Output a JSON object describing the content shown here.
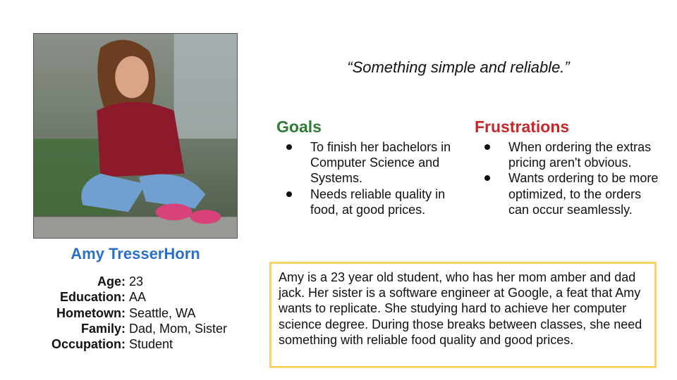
{
  "persona": {
    "name": "Amy TresserHorn",
    "details": [
      {
        "label": "Age:",
        "value": "23"
      },
      {
        "label": "Education:",
        "value": "AA"
      },
      {
        "label": "Hometown:",
        "value": "Seattle, WA"
      },
      {
        "label": "Family:",
        "value": "Dad, Mom, Sister"
      },
      {
        "label": "Occupation:",
        "value": "Student"
      }
    ]
  },
  "quote": "“Something simple and reliable.”",
  "goals": {
    "title": "Goals",
    "items": [
      "To finish her bachelors in Computer Science and Systems.",
      "Needs reliable quality in food, at good prices."
    ]
  },
  "frustrations": {
    "title": "Frustrations",
    "items": [
      "When ordering the extras pricing aren't obvious.",
      "Wants ordering to be more optimized, to the orders can occur seamlessly."
    ]
  },
  "bio": "Amy is a 23 year old student, who has her mom amber and dad jack. Her sister is a software engineer at Google, a feat that Amy wants to replicate. She studying hard to achieve her computer science degree. During those breaks between classes, she need something with reliable food quality and good prices.",
  "colors": {
    "name": "#2a6fc9",
    "goals": "#2e7d32",
    "frustrations": "#c62828",
    "bio_border": "#f6d36b"
  }
}
